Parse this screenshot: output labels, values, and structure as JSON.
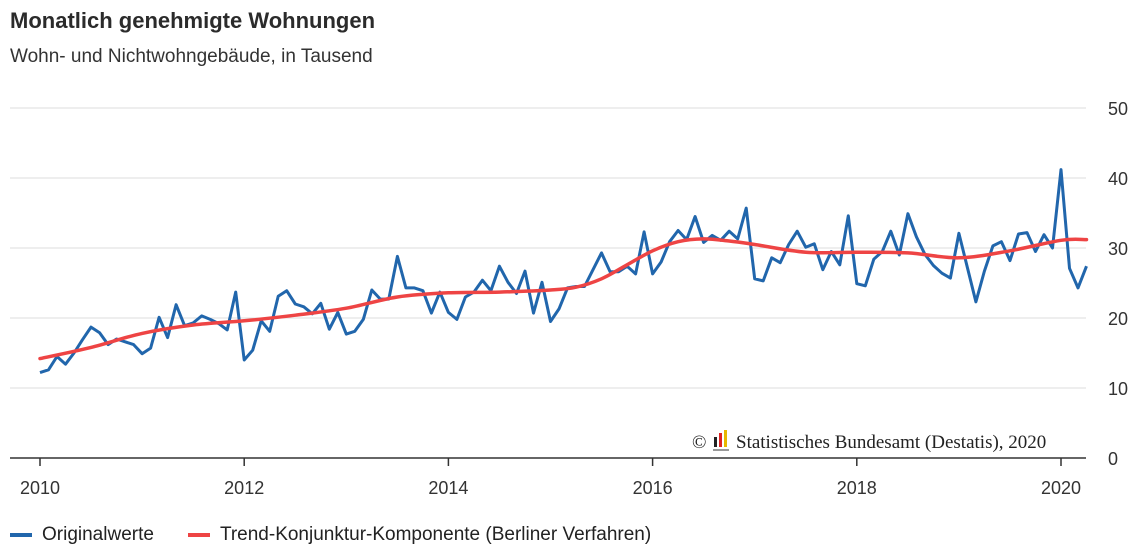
{
  "colors": {
    "original": "#2166ac",
    "trend": "#ee4444",
    "grid": "#dddddd",
    "axis": "#333333"
  },
  "chart_data": {
    "type": "line",
    "title": "Monatlich genehmigte Wohnungen",
    "subtitle": "Wohn- und Nichtwohngebäude, in Tausend",
    "credit_symbol": "©",
    "credit": "Statistisches Bundesamt (Destatis), 2020",
    "xlim": [
      2010,
      2020.35
    ],
    "ylim": [
      0,
      50
    ],
    "x_ticks": [
      2010,
      2012,
      2014,
      2016,
      2018,
      2020
    ],
    "x_tick_labels": [
      "2010",
      "2012",
      "2014",
      "2016",
      "2018",
      "2020"
    ],
    "y_ticks": [
      0,
      10,
      20,
      30,
      40,
      50
    ],
    "y_tick_labels": [
      "0",
      "10",
      "20",
      "30",
      "40",
      "50"
    ],
    "grid": "horizontal",
    "legend_placement": "bottom",
    "series": [
      {
        "name": "Originalwerte",
        "x_start": "2010-01",
        "frequency": "monthly",
        "values": [
          12.2,
          12.6,
          14.5,
          13.4,
          15.0,
          16.9,
          18.7,
          17.9,
          16.2,
          17.0,
          16.6,
          16.2,
          14.9,
          15.7,
          20.1,
          17.2,
          21.9,
          18.9,
          19.3,
          20.3,
          19.8,
          19.2,
          18.3,
          23.7,
          14.0,
          15.4,
          19.6,
          18.1,
          23.1,
          23.9,
          22.0,
          21.6,
          20.6,
          22.1,
          18.4,
          20.8,
          17.7,
          18.1,
          19.8,
          24.0,
          22.7,
          22.7,
          28.8,
          24.3,
          24.3,
          23.9,
          20.7,
          23.7,
          20.8,
          19.8,
          23.0,
          23.7,
          25.4,
          23.9,
          27.4,
          25.1,
          23.5,
          26.7,
          20.7,
          25.1,
          19.5,
          21.3,
          24.3,
          24.5,
          24.5,
          26.9,
          29.3,
          26.6,
          26.6,
          27.4,
          26.3,
          32.3,
          26.3,
          28.0,
          30.9,
          32.5,
          31.2,
          34.5,
          30.8,
          31.8,
          31.1,
          32.4,
          31.3,
          35.7,
          25.6,
          25.3,
          28.6,
          27.9,
          30.5,
          32.4,
          30.1,
          30.6,
          26.9,
          29.5,
          27.6,
          34.6,
          24.9,
          24.6,
          28.4,
          29.5,
          32.4,
          29.0,
          34.9,
          31.6,
          29.1,
          27.5,
          26.4,
          25.7,
          32.1,
          27.2,
          22.3,
          26.7,
          30.3,
          30.9,
          28.2,
          32.0,
          32.2,
          29.5,
          31.9,
          30.0,
          41.2,
          27.1,
          24.3,
          27.4
        ]
      },
      {
        "name": "Trend-Konjunktur-Komponente (Berliner Verfahren)",
        "x": [
          2010.0,
          2010.5,
          2011.0,
          2011.5,
          2012.0,
          2012.5,
          2013.0,
          2013.5,
          2014.0,
          2014.5,
          2015.0,
          2015.25,
          2015.5,
          2015.75,
          2016.0,
          2016.25,
          2016.5,
          2016.75,
          2017.0,
          2017.5,
          2018.0,
          2018.5,
          2019.0,
          2019.5,
          2020.0,
          2020.25
        ],
        "values": [
          14.2,
          15.8,
          17.8,
          19.0,
          19.6,
          20.4,
          21.4,
          23.0,
          23.6,
          23.7,
          24.0,
          24.4,
          25.6,
          27.6,
          29.6,
          30.9,
          31.3,
          31.0,
          30.5,
          29.4,
          29.4,
          29.3,
          28.6,
          29.6,
          31.1,
          31.2
        ]
      }
    ]
  }
}
